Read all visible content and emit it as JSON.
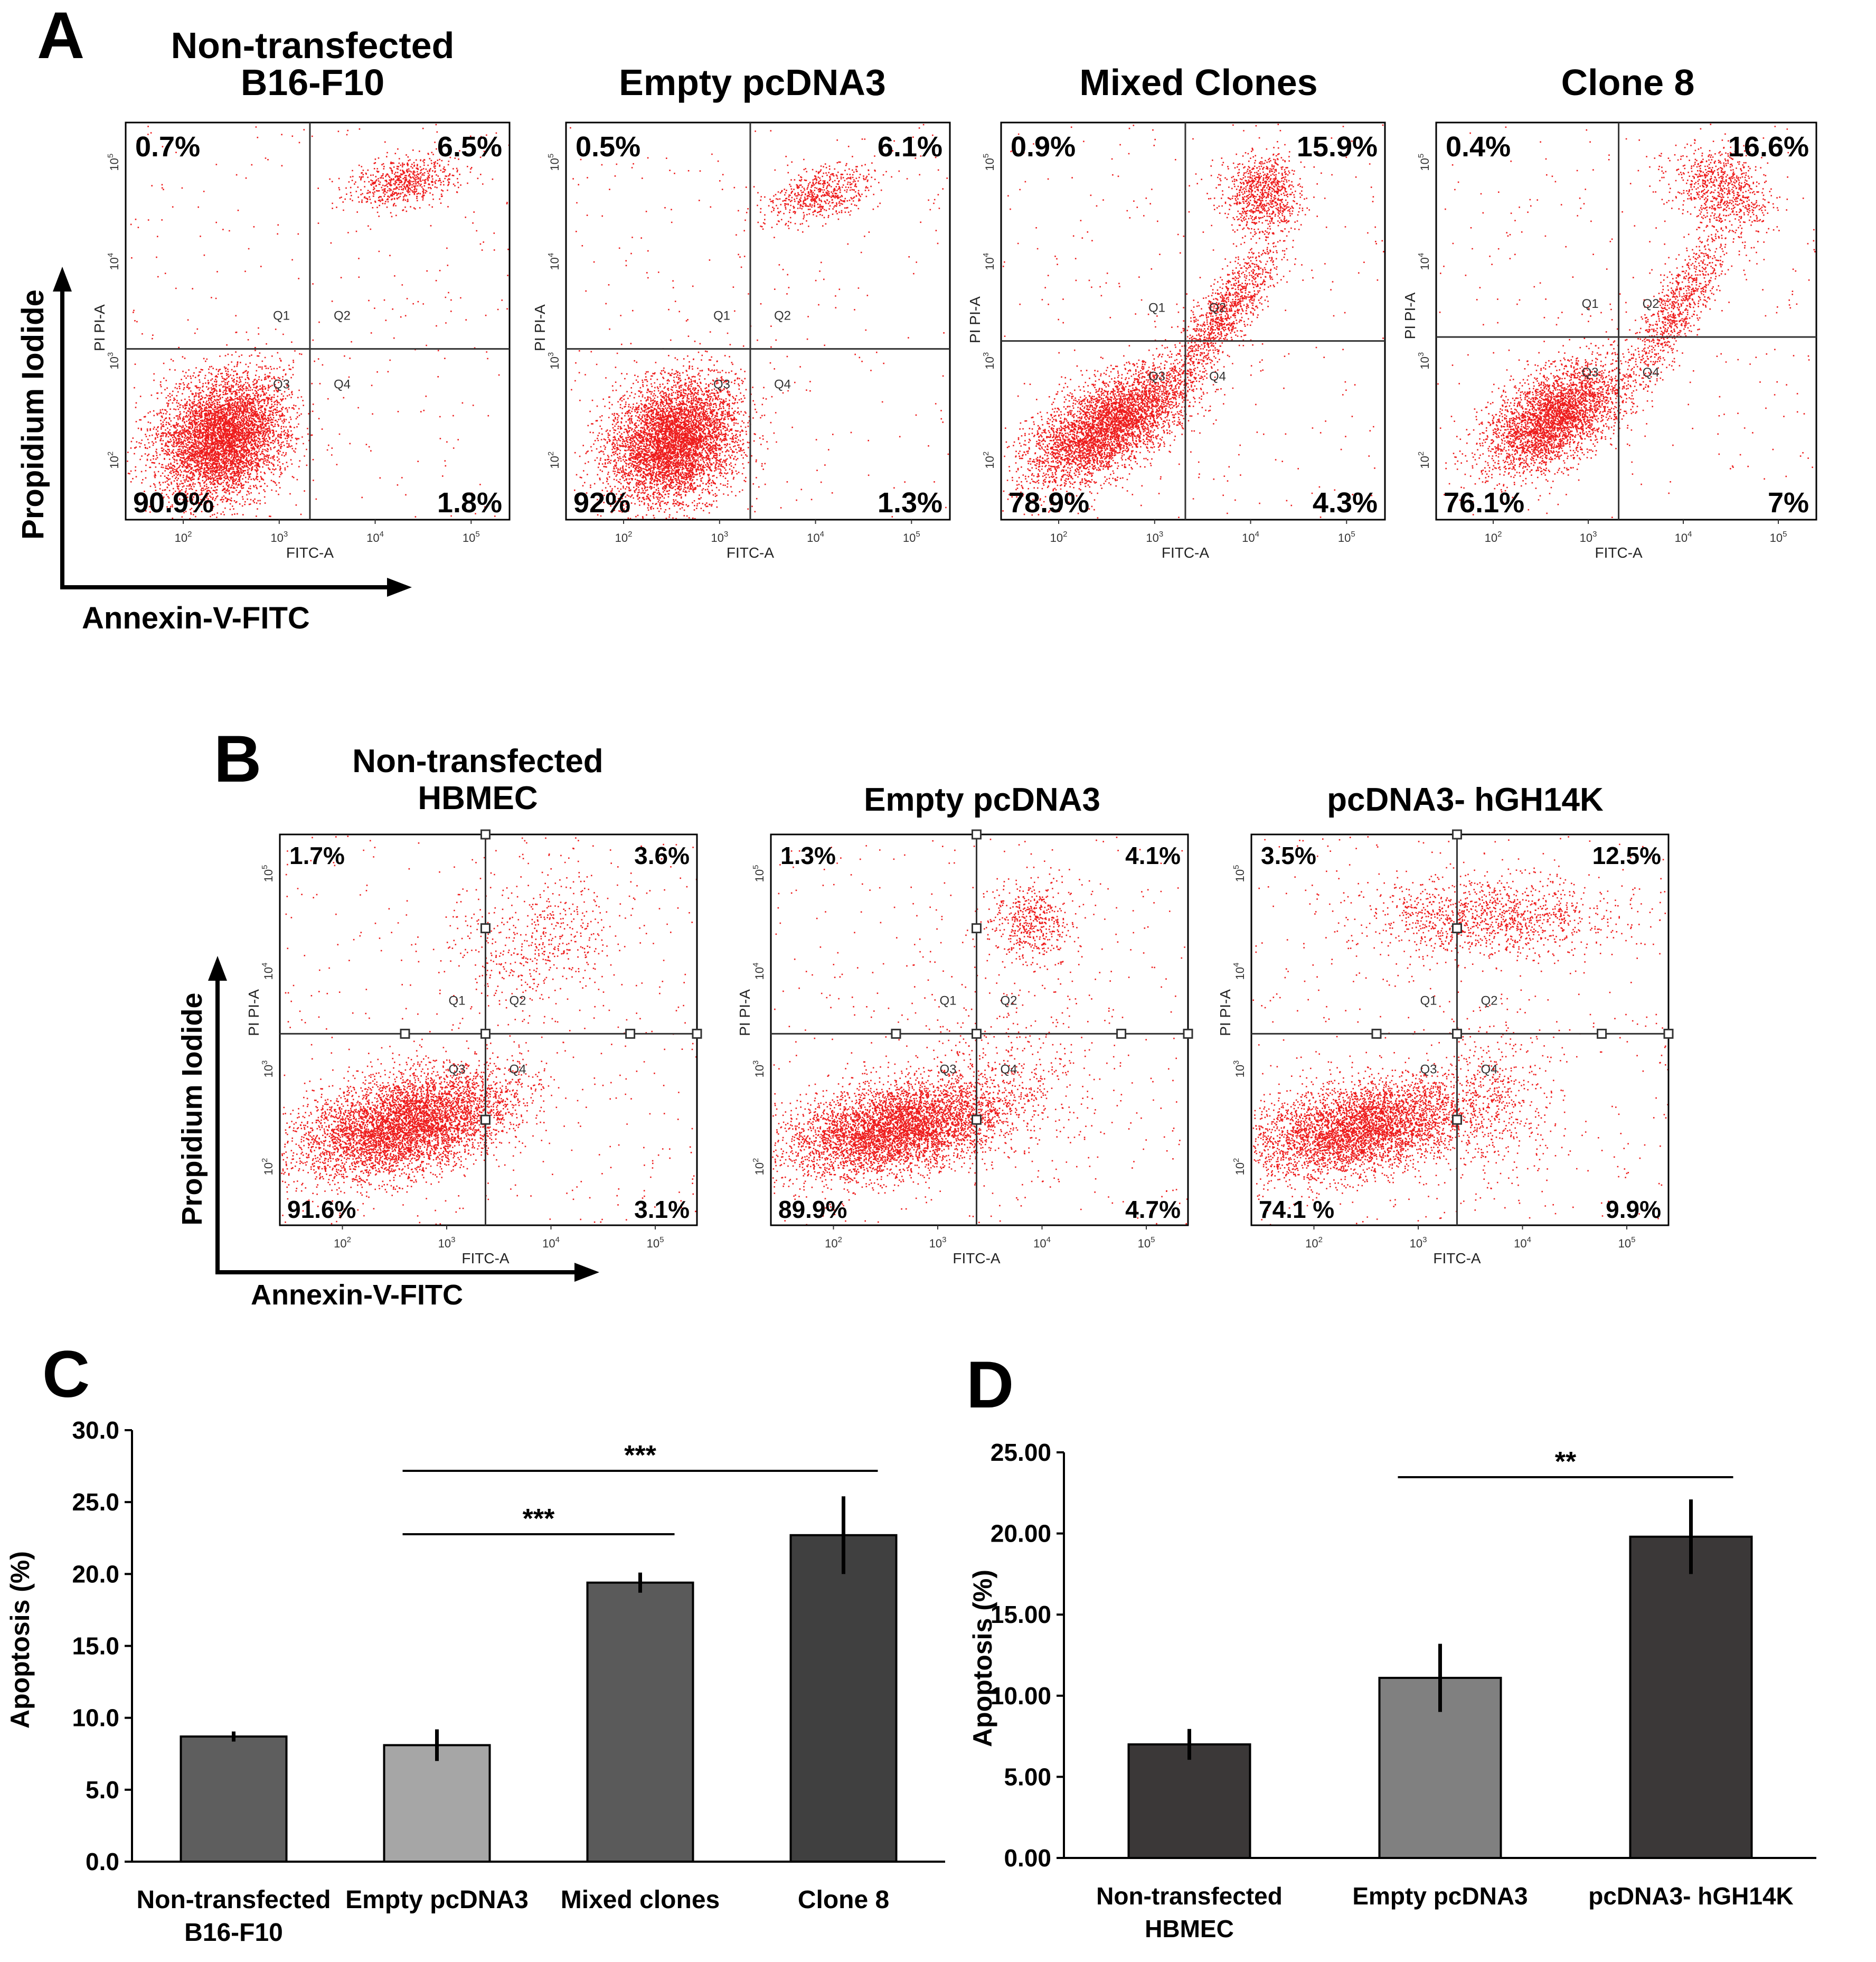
{
  "colors": {
    "dots": "#ee1c1c",
    "axis": "#000000",
    "gate": "#333333",
    "bar_A_0": "#5e5e5e",
    "bar_A_1": "#a6a6a6",
    "bar_A_2": "#5a5a5a",
    "bar_A_3": "#404040",
    "bar_D_0": "#3b3838",
    "bar_D_1": "#808080",
    "bar_D_2": "#3b3838"
  },
  "panel_A": {
    "letter": "A",
    "ylabel": "Propidium Iodide",
    "xlabel": "Annexin-V-FITC",
    "plots": [
      {
        "title_lines": [
          "Non-transfected",
          "B16-F10"
        ],
        "q1": "0.7%",
        "q2": "6.5%",
        "q3": "90.9%",
        "q4": "1.8%"
      },
      {
        "title_lines": [
          "Empty pcDNA3"
        ],
        "q1": "0.5%",
        "q2": "6.1%",
        "q3": "92%",
        "q4": "1.3%"
      },
      {
        "title_lines": [
          "Mixed Clones"
        ],
        "q1": "0.9%",
        "q2": "15.9%",
        "q3": "78.9%",
        "q4": "4.3%"
      },
      {
        "title_lines": [
          "Clone 8"
        ],
        "q1": "0.4%",
        "q2": "16.6%",
        "q3": "76.1%",
        "q4": "7%"
      }
    ]
  },
  "panel_B": {
    "letter": "B",
    "ylabel": "Propidium Iodide",
    "xlabel": "Annexin-V-FITC",
    "plots": [
      {
        "title_lines": [
          "Non-transfected",
          "HBMEC"
        ],
        "q1": "1.7%",
        "q2": "3.6%",
        "q3": "91.6%",
        "q4": "3.1%"
      },
      {
        "title_lines": [
          "Empty pcDNA3"
        ],
        "q1": "1.3%",
        "q2": "4.1%",
        "q3": "89.9%",
        "q4": "4.7%"
      },
      {
        "title_lines": [
          "pcDNA3- hGH14K"
        ],
        "q1": "3.5%",
        "q2": "12.5%",
        "q3": "74.1 %",
        "q4": "9.9%"
      }
    ]
  },
  "flow_labels": {
    "x_axis": "FITC-A",
    "y_axis": "PI PI-A",
    "quadrants": [
      "Q1",
      "Q2",
      "Q3",
      "Q4"
    ],
    "ticks": [
      "10",
      "2",
      "3",
      "4",
      "5"
    ]
  },
  "chart_data": [
    {
      "type": "bar",
      "panel": "C",
      "categories": [
        [
          "Non-transfected",
          "B16-F10"
        ],
        [
          "Empty pcDNA3"
        ],
        [
          "Mixed clones"
        ],
        [
          "Clone 8"
        ]
      ],
      "values": [
        8.7,
        8.1,
        19.4,
        22.7
      ],
      "errors": [
        0.35,
        1.1,
        0.7,
        2.7
      ],
      "ylabel": "Apoptosis (%)",
      "ylim": [
        0,
        30
      ],
      "yticks": [
        "0.0",
        "5.0",
        "10.0",
        "15.0",
        "20.0",
        "25.0",
        "30.0"
      ],
      "significance": [
        {
          "from": 1,
          "to": 2,
          "label": "***"
        },
        {
          "from": 1,
          "to": 3,
          "label": "***"
        }
      ]
    },
    {
      "type": "bar",
      "panel": "D",
      "categories": [
        [
          "Non-transfected",
          "HBMEC"
        ],
        [
          "Empty pcDNA3"
        ],
        [
          "pcDNA3- hGH14K"
        ]
      ],
      "values": [
        7.0,
        11.1,
        19.8
      ],
      "errors": [
        0.95,
        2.1,
        2.3
      ],
      "ylabel": "Apoptosis (%)",
      "ylim": [
        0,
        25
      ],
      "yticks": [
        "0.00",
        "5.00",
        "10.00",
        "15.00",
        "20.00",
        "25.00"
      ],
      "significance": [
        {
          "from": 1,
          "to": 2,
          "label": "**"
        }
      ]
    }
  ]
}
